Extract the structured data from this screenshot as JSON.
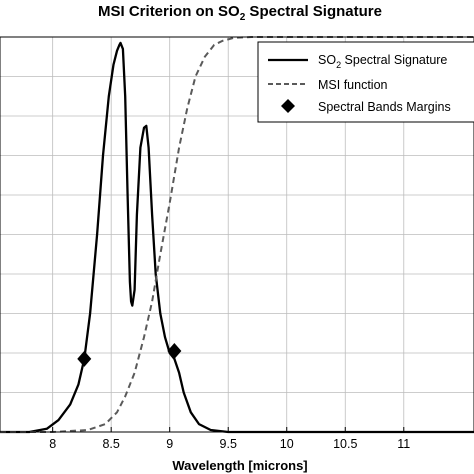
{
  "chart_data": {
    "type": "line",
    "title": {
      "prefix": "MSI Criterion on SO",
      "sub": "2",
      "suffix": " Spectral Signature"
    },
    "xlabel": "Wavelength [microns]",
    "ylabel": "",
    "xlim": [
      7.55,
      11.6
    ],
    "ylim": [
      0,
      1.0
    ],
    "x_ticks": [
      {
        "value": 8,
        "label": "8"
      },
      {
        "value": 8.5,
        "label": "8.5"
      },
      {
        "value": 9,
        "label": "9"
      },
      {
        "value": 9.5,
        "label": "9.5"
      },
      {
        "value": 10,
        "label": "10"
      },
      {
        "value": 10.5,
        "label": "10.5"
      },
      {
        "value": 11,
        "label": "11"
      }
    ],
    "y_grid": [
      0.1,
      0.2,
      0.3,
      0.4,
      0.5,
      0.6,
      0.7,
      0.8,
      0.9,
      1.0
    ],
    "grid": true,
    "legend_position": "top-right",
    "series": [
      {
        "name": "SO2 Spectral Signature",
        "legend_prefix": "SO",
        "legend_sub": "2",
        "legend_suffix": " Spectral Signature",
        "style": "solid",
        "color": "#000000",
        "x": [
          7.55,
          7.8,
          7.95,
          8.05,
          8.15,
          8.22,
          8.27,
          8.32,
          8.38,
          8.43,
          8.48,
          8.52,
          8.55,
          8.57,
          8.58,
          8.6,
          8.62,
          8.64,
          8.66,
          8.67,
          8.68,
          8.7,
          8.72,
          8.75,
          8.78,
          8.8,
          8.82,
          8.85,
          8.88,
          8.92,
          8.96,
          9.0,
          9.04,
          9.08,
          9.12,
          9.18,
          9.25,
          9.35,
          9.5,
          9.7,
          10.0,
          11.6
        ],
        "y": [
          0.0,
          0.0,
          0.008,
          0.03,
          0.07,
          0.12,
          0.185,
          0.3,
          0.5,
          0.7,
          0.85,
          0.93,
          0.965,
          0.98,
          0.985,
          0.97,
          0.85,
          0.6,
          0.38,
          0.33,
          0.32,
          0.36,
          0.55,
          0.72,
          0.77,
          0.775,
          0.72,
          0.55,
          0.4,
          0.3,
          0.24,
          0.2,
          0.185,
          0.15,
          0.1,
          0.05,
          0.02,
          0.005,
          0.0,
          0.0,
          0.0,
          0.0
        ]
      },
      {
        "name": "MSI function",
        "style": "dashed",
        "color": "#5a5a5a",
        "x": [
          7.55,
          8.0,
          8.3,
          8.45,
          8.55,
          8.62,
          8.7,
          8.78,
          8.85,
          8.92,
          9.0,
          9.08,
          9.15,
          9.22,
          9.3,
          9.38,
          9.45,
          9.55,
          9.7,
          9.9,
          11.6
        ],
        "y": [
          0.0,
          0.0,
          0.005,
          0.02,
          0.05,
          0.09,
          0.15,
          0.24,
          0.33,
          0.45,
          0.58,
          0.72,
          0.82,
          0.9,
          0.95,
          0.98,
          0.99,
          0.998,
          1.0,
          1.0,
          1.0
        ]
      },
      {
        "name": "Spectral Bands Margins",
        "style": "diamond-markers",
        "color": "#000000",
        "x": [
          8.27,
          9.04
        ],
        "y": [
          0.185,
          0.205
        ]
      }
    ]
  }
}
